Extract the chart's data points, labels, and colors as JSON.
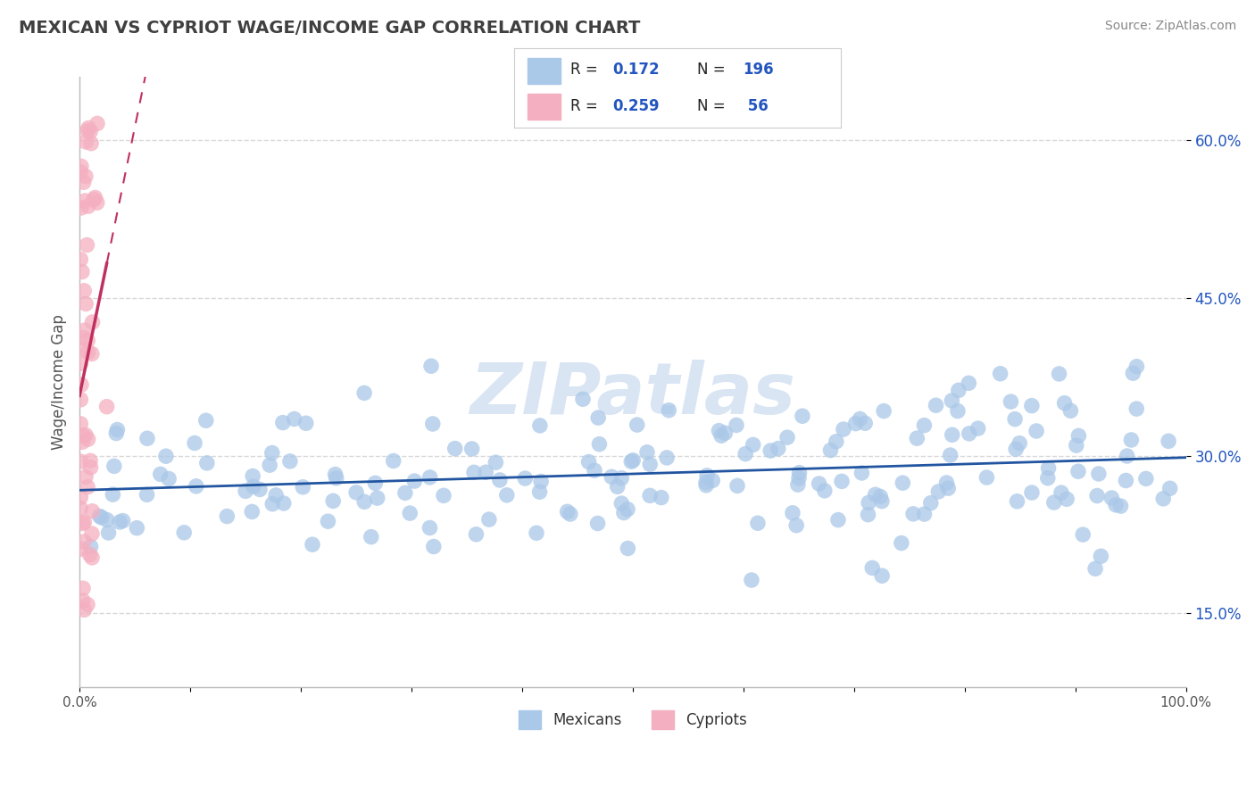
{
  "title": "MEXICAN VS CYPRIOT WAGE/INCOME GAP CORRELATION CHART",
  "source": "Source: ZipAtlas.com",
  "ylabel": "Wage/Income Gap",
  "xlim": [
    0.0,
    1.0
  ],
  "ylim": [
    0.08,
    0.66
  ],
  "yticks": [
    0.15,
    0.3,
    0.45,
    0.6
  ],
  "ytick_labels": [
    "15.0%",
    "30.0%",
    "45.0%",
    "60.0%"
  ],
  "xticks": [
    0.0,
    0.1,
    0.2,
    0.3,
    0.4,
    0.5,
    0.6,
    0.7,
    0.8,
    0.9,
    1.0
  ],
  "xtick_labels": [
    "0.0%",
    "",
    "",
    "",
    "",
    "",
    "",
    "",
    "",
    "",
    "100.0%"
  ],
  "blue_R": 0.172,
  "blue_N": 196,
  "pink_R": 0.259,
  "pink_N": 56,
  "blue_color": "#aac8e8",
  "blue_edge_color": "#aac8e8",
  "blue_line_color": "#2255a0",
  "pink_color": "#f4afc0",
  "pink_edge_color": "#f4afc0",
  "pink_line_color": "#c03060",
  "background_color": "#ffffff",
  "watermark": "ZIPatlas",
  "watermark_color": "#c0d4ec",
  "title_color": "#404040",
  "legend_text_color": "#2255c0",
  "grid_color": "#d8d8d8",
  "source_color": "#888888",
  "ylabel_color": "#555555",
  "ytick_color": "#2255c0",
  "xtick_color": "#555555"
}
